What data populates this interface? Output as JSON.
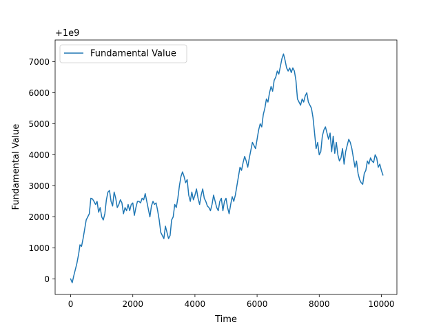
{
  "chart_data": {
    "type": "line",
    "title": "",
    "xlabel": "Time",
    "ylabel": "Fundamental Value",
    "offset_text": "+1e9",
    "xlim": [
      -500,
      10500
    ],
    "ylim": [
      -500,
      7700
    ],
    "xticks": [
      0,
      2000,
      4000,
      6000,
      8000,
      10000
    ],
    "yticks": [
      0,
      1000,
      2000,
      3000,
      4000,
      5000,
      6000,
      7000
    ],
    "grid": false,
    "legend_position": "top-left",
    "series": [
      {
        "name": "Fundamental Value",
        "color": "#1f77b4",
        "x": [
          0,
          50,
          100,
          150,
          200,
          260,
          300,
          350,
          400,
          450,
          500,
          550,
          600,
          650,
          700,
          750,
          800,
          850,
          900,
          950,
          1000,
          1050,
          1100,
          1150,
          1200,
          1250,
          1300,
          1350,
          1400,
          1450,
          1500,
          1550,
          1600,
          1650,
          1700,
          1750,
          1800,
          1850,
          1900,
          1950,
          2000,
          2050,
          2100,
          2150,
          2200,
          2250,
          2300,
          2350,
          2400,
          2450,
          2500,
          2550,
          2600,
          2650,
          2700,
          2750,
          2800,
          2850,
          2900,
          2950,
          3000,
          3050,
          3100,
          3150,
          3200,
          3250,
          3300,
          3350,
          3400,
          3450,
          3500,
          3550,
          3600,
          3650,
          3700,
          3750,
          3800,
          3850,
          3900,
          3950,
          4000,
          4050,
          4100,
          4150,
          4200,
          4250,
          4300,
          4350,
          4400,
          4450,
          4500,
          4550,
          4600,
          4650,
          4700,
          4750,
          4800,
          4850,
          4900,
          4950,
          5000,
          5050,
          5100,
          5150,
          5200,
          5250,
          5300,
          5350,
          5400,
          5450,
          5500,
          5550,
          5600,
          5650,
          5700,
          5750,
          5800,
          5850,
          5900,
          5950,
          6000,
          6050,
          6100,
          6150,
          6200,
          6250,
          6300,
          6350,
          6400,
          6450,
          6500,
          6550,
          6600,
          6650,
          6700,
          6750,
          6800,
          6850,
          6900,
          6950,
          7000,
          7050,
          7100,
          7150,
          7200,
          7250,
          7300,
          7350,
          7400,
          7450,
          7500,
          7550,
          7600,
          7650,
          7700,
          7750,
          7800,
          7850,
          7900,
          7950,
          8000,
          8050,
          8100,
          8150,
          8200,
          8250,
          8300,
          8350,
          8400,
          8450,
          8500,
          8550,
          8600,
          8650,
          8700,
          8750,
          8800,
          8850,
          8900,
          8950,
          9000,
          9050,
          9100,
          9150,
          9200,
          9250,
          9300,
          9350,
          9400,
          9450,
          9500,
          9550,
          9600,
          9650,
          9700,
          9750,
          9800,
          9850,
          9900,
          9950,
          10000,
          10050
        ],
        "values": [
          0,
          -120,
          100,
          300,
          500,
          820,
          1100,
          1050,
          1300,
          1600,
          1900,
          2000,
          2100,
          2600,
          2580,
          2500,
          2400,
          2500,
          2150,
          2300,
          2000,
          1900,
          2100,
          2550,
          2800,
          2850,
          2500,
          2350,
          2800,
          2600,
          2300,
          2400,
          2550,
          2450,
          2100,
          2300,
          2200,
          2400,
          2200,
          2400,
          2450,
          2050,
          2300,
          2500,
          2500,
          2450,
          2600,
          2550,
          2750,
          2500,
          2250,
          2000,
          2350,
          2500,
          2400,
          2450,
          2200,
          1900,
          1500,
          1400,
          1300,
          1700,
          1500,
          1300,
          1400,
          1900,
          2000,
          2400,
          2300,
          2600,
          3000,
          3300,
          3450,
          3300,
          3100,
          3200,
          2700,
          2500,
          2800,
          2550,
          2700,
          2900,
          2600,
          2400,
          2700,
          2900,
          2600,
          2500,
          2350,
          2300,
          2200,
          2400,
          2700,
          2500,
          2300,
          2200,
          2500,
          2600,
          2200,
          2500,
          2600,
          2300,
          2100,
          2400,
          2650,
          2500,
          2700,
          3000,
          3300,
          3600,
          3500,
          3750,
          3950,
          3800,
          3600,
          3900,
          4150,
          4400,
          4300,
          4200,
          4500,
          4800,
          5000,
          4900,
          5300,
          5500,
          5800,
          5700,
          6000,
          6200,
          6050,
          6400,
          6500,
          6700,
          6600,
          6850,
          7100,
          7250,
          7050,
          6800,
          6700,
          6800,
          6650,
          6800,
          6700,
          6400,
          5800,
          5700,
          5600,
          5800,
          5700,
          5900,
          6000,
          5700,
          5600,
          5500,
          5200,
          4700,
          4200,
          4400,
          4000,
          4100,
          4600,
          4800,
          4900,
          4700,
          4500,
          4700,
          4100,
          4600,
          4050,
          4400,
          4000,
          3800,
          3900,
          4200,
          3700,
          4100,
          4300,
          4500,
          4400,
          4200,
          3900,
          3600,
          3800,
          3400,
          3200,
          3100,
          3050,
          3400,
          3500,
          3800,
          3700,
          3900,
          3800,
          3750,
          4000,
          3900,
          3600,
          3700,
          3500,
          3350
        ]
      }
    ]
  }
}
